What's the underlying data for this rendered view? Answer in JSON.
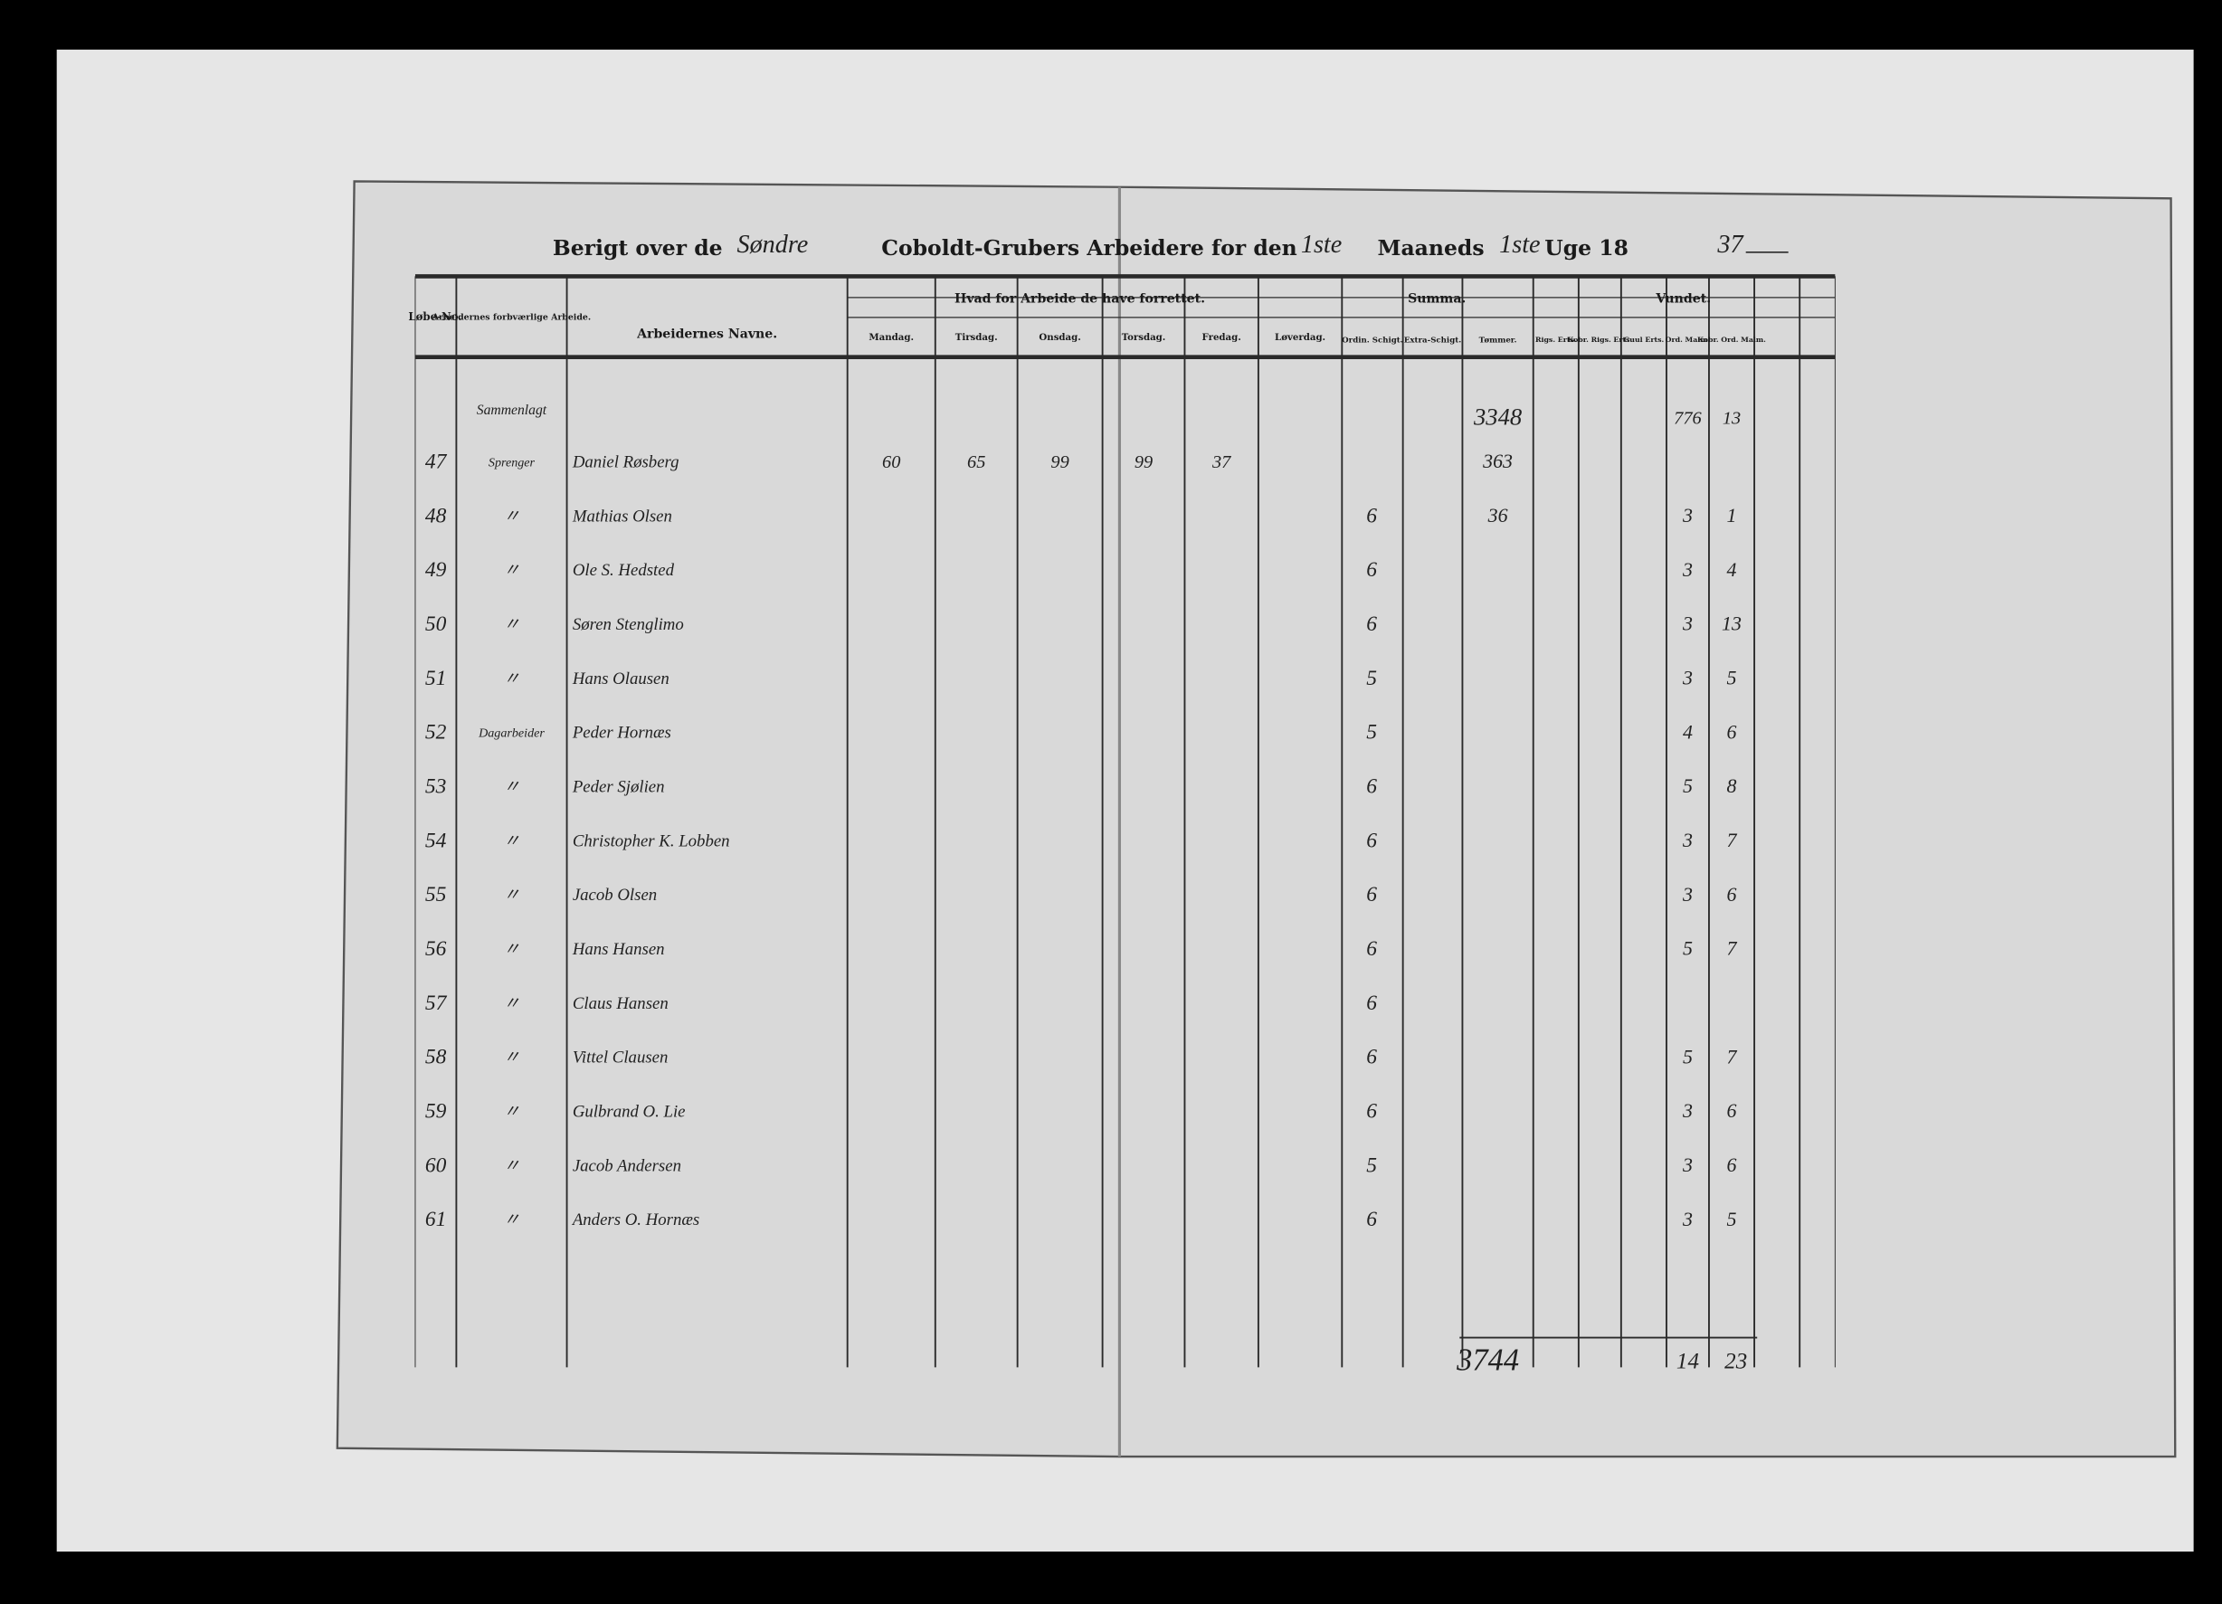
{
  "header": {
    "title_parts": [
      "Berigt over de",
      "Coboldt-Grubers Arbeidere for den",
      "Maaneds",
      "Uge 18"
    ],
    "handwritten": [
      "Søndre",
      "1ste",
      "1ste",
      "37"
    ]
  },
  "table": {
    "columns": {
      "no": "Løbe-No.",
      "work": "Arbeidernes forbværlige Arbeide.",
      "name": "Arbeidernes Navne.",
      "days_group": "Hvad for Arbeide de have forrettet.",
      "days": [
        "Mandag.",
        "Tirsdag.",
        "Onsdag.",
        "Torsdag.",
        "Fredag.",
        "Løverdag."
      ],
      "summa_group": "Summa.",
      "summa": [
        "Ordin. Schigt.",
        "Extra-Schigt.",
        "Tømmer."
      ],
      "vundet_group": "Vundet.",
      "vundet": [
        "Rigs. Erts.",
        "Kobr. Rigs. Erts.",
        "Guul Erts.",
        "Ord. Malm.",
        "Kobr. Ord. Malm."
      ]
    },
    "carried": {
      "work": "Sammenlagt",
      "tommer": "3348",
      "ordmalm": "776",
      "kobr": "13"
    },
    "rows": [
      {
        "no": "47",
        "work": "Sprenger",
        "name": "Daniel Røsberg",
        "days": [
          "60",
          "65",
          "99",
          "99",
          "37"
        ],
        "tommer": "363"
      },
      {
        "no": "48",
        "work": "〃",
        "name": "Mathias Olsen",
        "ordin": "6",
        "tommer": "36",
        "malm": "3",
        "kobr": "1"
      },
      {
        "no": "49",
        "work": "〃",
        "name": "Ole S. Hedsted",
        "ordin": "6",
        "malm": "3",
        "kobr": "4"
      },
      {
        "no": "50",
        "work": "〃",
        "name": "Søren Stenglimo",
        "ordin": "6",
        "malm": "3",
        "kobr": "13"
      },
      {
        "no": "51",
        "work": "〃",
        "name": "Hans Olausen",
        "ordin": "5",
        "malm": "3",
        "kobr": "5"
      },
      {
        "no": "52",
        "work": "Dagarbeider",
        "name": "Peder Hornæs",
        "ordin": "5",
        "malm": "4",
        "kobr": "6"
      },
      {
        "no": "53",
        "work": "〃",
        "name": "Peder Sjølien",
        "ordin": "6",
        "malm": "5",
        "kobr": "8"
      },
      {
        "no": "54",
        "work": "〃",
        "name": "Christopher K. Lobben",
        "ordin": "6",
        "malm": "3",
        "kobr": "7"
      },
      {
        "no": "55",
        "work": "〃",
        "name": "Jacob Olsen",
        "ordin": "6",
        "malm": "3",
        "kobr": "6"
      },
      {
        "no": "56",
        "work": "〃",
        "name": "Hans Hansen",
        "ordin": "6",
        "malm": "5",
        "kobr": "7"
      },
      {
        "no": "57",
        "work": "〃",
        "name": "Claus Hansen",
        "ordin": "6"
      },
      {
        "no": "58",
        "work": "〃",
        "name": "Vittel Clausen",
        "ordin": "6",
        "malm": "5",
        "kobr": "7"
      },
      {
        "no": "59",
        "work": "〃",
        "name": "Gulbrand O. Lie",
        "ordin": "6",
        "malm": "3",
        "kobr": "6"
      },
      {
        "no": "60",
        "work": "〃",
        "name": "Jacob Andersen",
        "ordin": "5",
        "malm": "3",
        "kobr": "6"
      },
      {
        "no": "61",
        "work": "〃",
        "name": "Anders O. Hornæs",
        "ordin": "6",
        "malm": "3",
        "kobr": "5"
      }
    ],
    "totals": {
      "tommer": "3744",
      "malm": "14",
      "kobr": "23"
    }
  }
}
